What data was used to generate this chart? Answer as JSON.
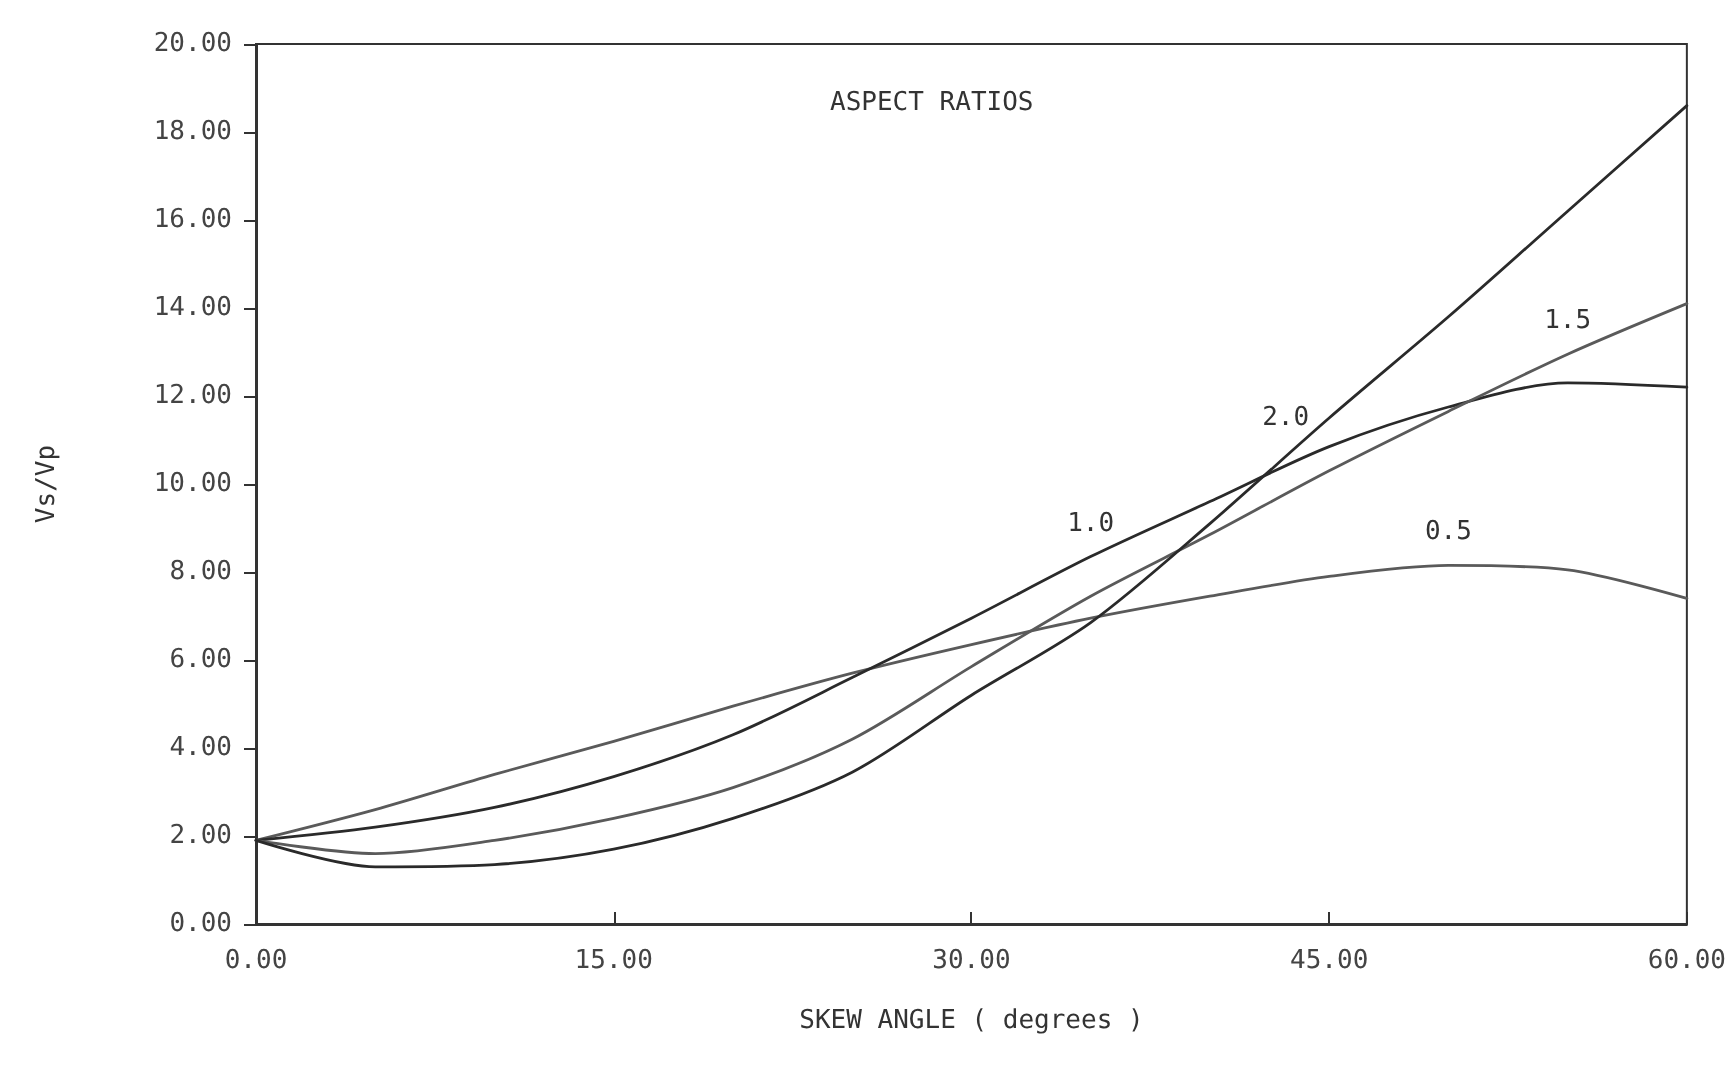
{
  "chart_data": {
    "type": "line",
    "title": "ASPECT RATIOS",
    "xlabel": "SKEW ANGLE ( degrees )",
    "ylabel": "Vs/Vp",
    "x": [
      0,
      5,
      10,
      15,
      20,
      25,
      30,
      35,
      40,
      45,
      50,
      55,
      60
    ],
    "series": [
      {
        "name": "0.5",
        "color": "#5a5a5a",
        "values": [
          1.9,
          2.6,
          3.4,
          4.15,
          4.95,
          5.7,
          6.35,
          6.95,
          7.45,
          7.9,
          8.15,
          8.05,
          7.4
        ]
      },
      {
        "name": "1.0",
        "color": "#2a2a2a",
        "values": [
          1.9,
          2.2,
          2.65,
          3.35,
          4.3,
          5.6,
          6.95,
          8.35,
          9.6,
          10.85,
          11.75,
          12.3,
          12.2
        ]
      },
      {
        "name": "1.5",
        "color": "#5a5a5a",
        "values": [
          1.9,
          1.6,
          1.9,
          2.4,
          3.1,
          4.2,
          5.85,
          7.45,
          8.85,
          10.3,
          11.65,
          12.95,
          14.1
        ]
      },
      {
        "name": "2.0",
        "color": "#2a2a2a",
        "values": [
          1.9,
          1.3,
          1.35,
          1.7,
          2.4,
          3.45,
          5.2,
          6.85,
          9.1,
          11.5,
          13.8,
          16.2,
          18.6
        ]
      }
    ],
    "xlim": [
      0,
      60
    ],
    "xticks": [
      {
        "value": 0,
        "label": "0.00"
      },
      {
        "value": 15,
        "label": "15.00"
      },
      {
        "value": 30,
        "label": "30.00"
      },
      {
        "value": 45,
        "label": "45.00"
      },
      {
        "value": 60,
        "label": "60.00"
      }
    ],
    "ylim": [
      0,
      20
    ],
    "yticks": [
      {
        "value": 0,
        "label": "0.00"
      },
      {
        "value": 2,
        "label": "2.00"
      },
      {
        "value": 4,
        "label": "4.00"
      },
      {
        "value": 6,
        "label": "6.00"
      },
      {
        "value": 8,
        "label": "8.00"
      },
      {
        "value": 10,
        "label": "10.00"
      },
      {
        "value": 12,
        "label": "12.00"
      },
      {
        "value": 14,
        "label": "14.00"
      },
      {
        "value": 16,
        "label": "16.00"
      },
      {
        "value": 18,
        "label": "18.00"
      },
      {
        "value": 20,
        "label": "20.00"
      }
    ],
    "grid": false,
    "legend": false,
    "marker": "none",
    "line_style": "solid"
  }
}
